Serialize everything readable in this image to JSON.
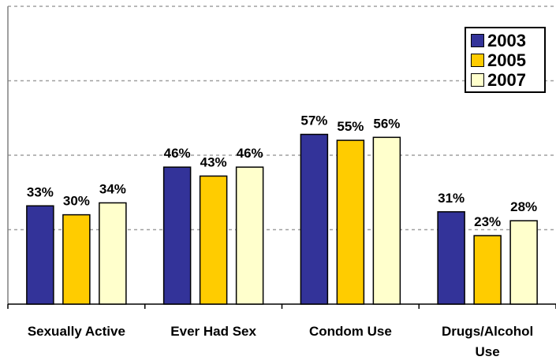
{
  "chart_data": {
    "type": "bar",
    "categories": [
      "Sexually Active",
      "Ever Had Sex",
      "Condom Use",
      "Drugs/Alcohol Use"
    ],
    "series": [
      {
        "name": "2003",
        "color": "#333399",
        "values": [
          33,
          46,
          57,
          31
        ]
      },
      {
        "name": "2005",
        "color": "#FFCC00",
        "values": [
          30,
          43,
          55,
          23
        ]
      },
      {
        "name": "2007",
        "color": "#FFFFCC",
        "values": [
          34,
          46,
          56,
          28
        ]
      }
    ],
    "data_labels": [
      [
        "33%",
        "46%",
        "57%",
        "31%"
      ],
      [
        "30%",
        "43%",
        "55%",
        "23%"
      ],
      [
        "34%",
        "46%",
        "56%",
        "28%"
      ]
    ],
    "ylim": [
      0,
      100
    ],
    "grid": true,
    "legend_position": "top-right",
    "title": "",
    "xlabel": "",
    "ylabel": ""
  }
}
